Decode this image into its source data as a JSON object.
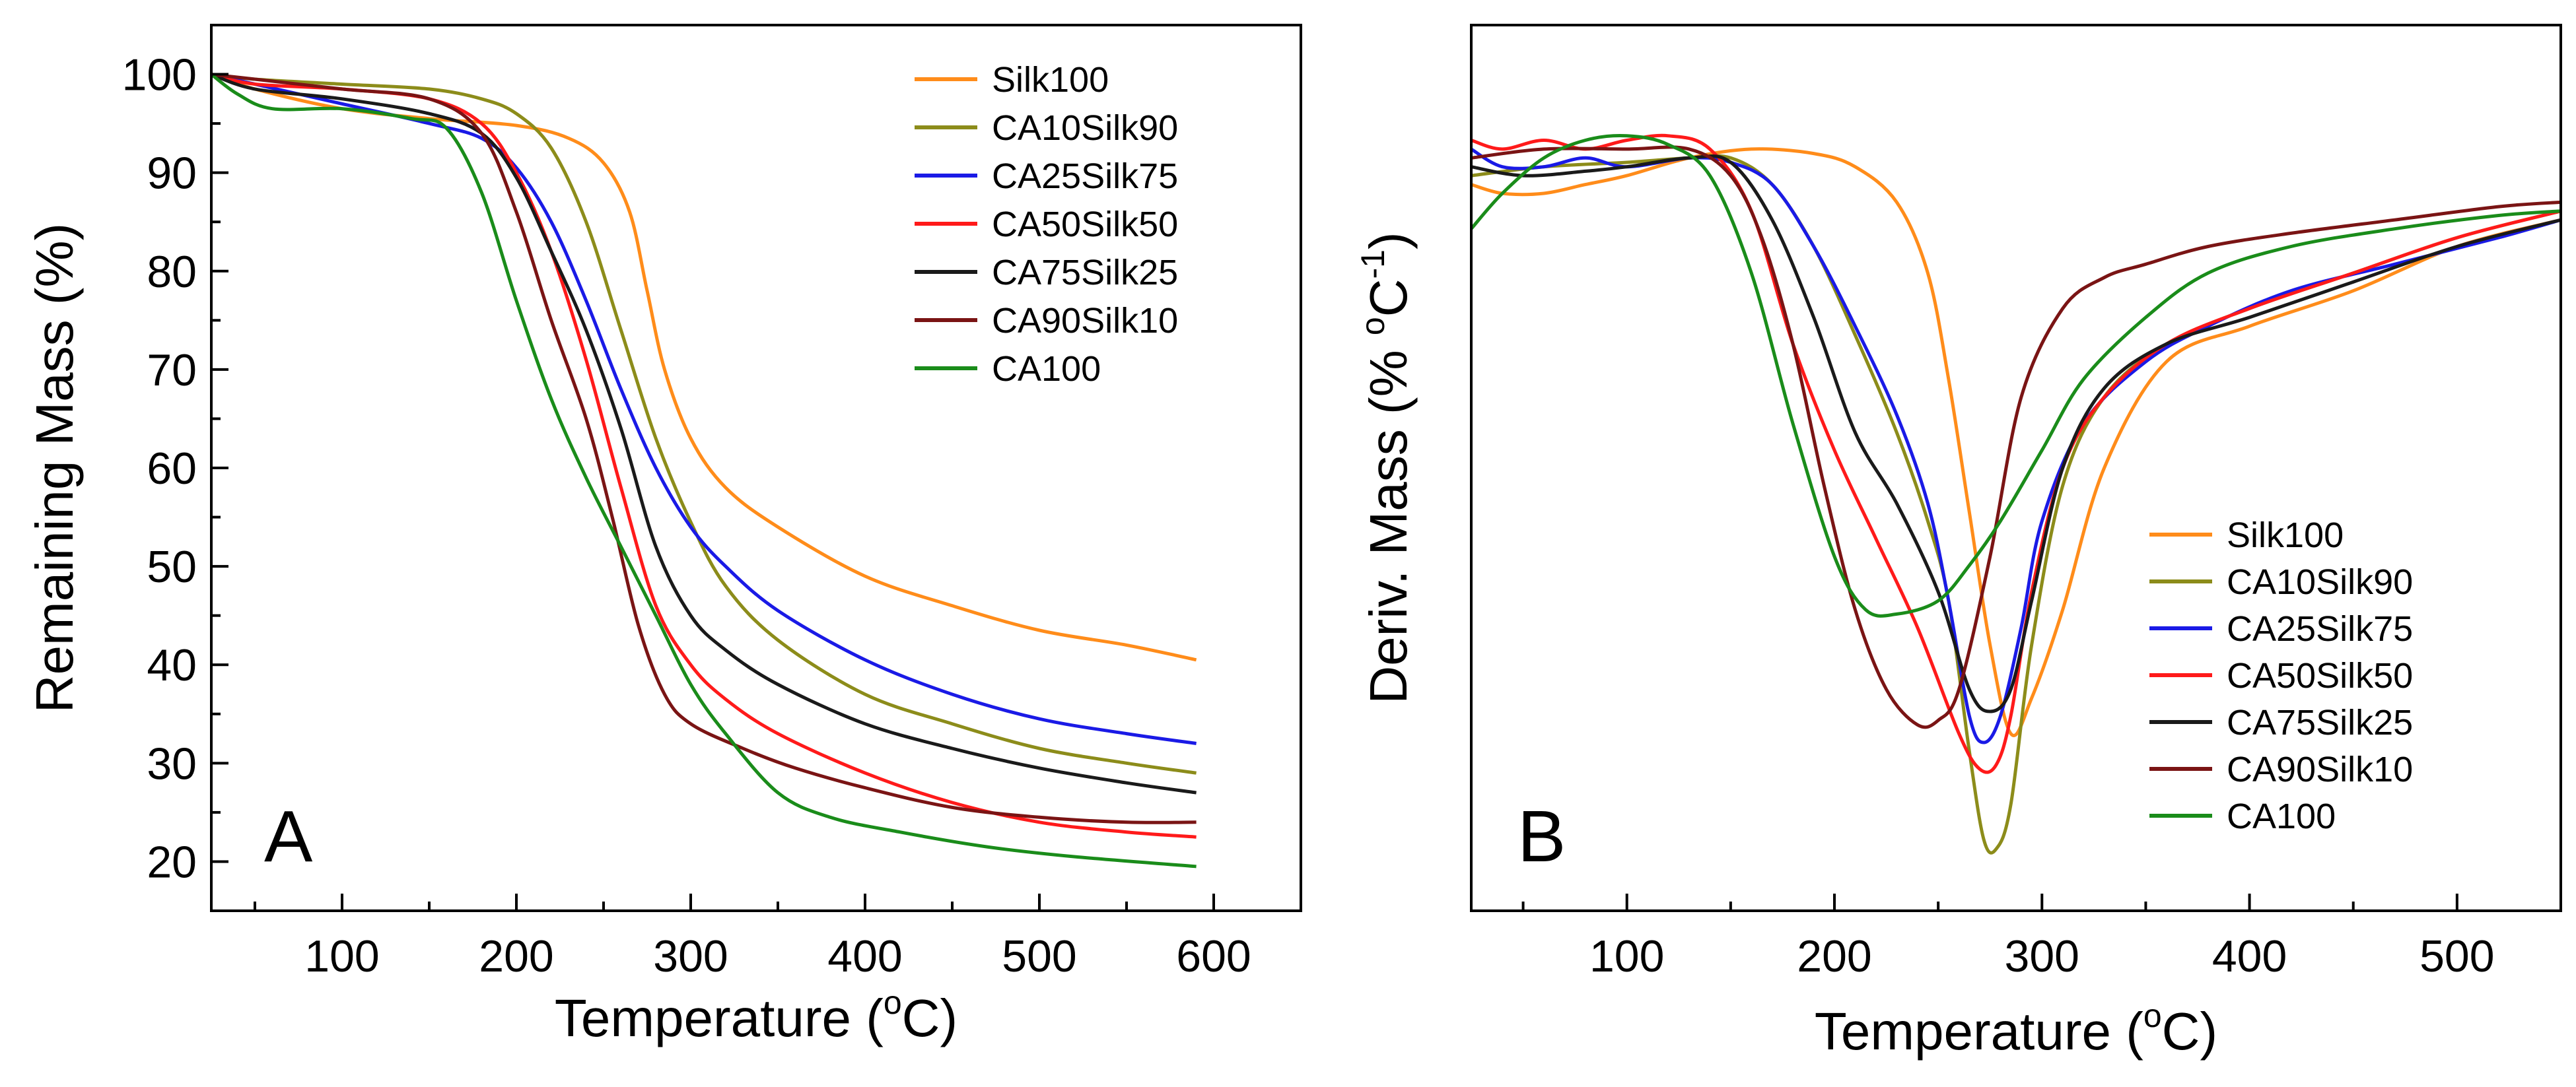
{
  "chart_data": [
    {
      "type": "line",
      "panel_label": "A",
      "title": "",
      "xlabel_main": "Temperature (",
      "xlabel_sup": "o",
      "xlabel_end": "C)",
      "ylabel": "Remaining Mass (%)",
      "xlim": [
        25,
        650
      ],
      "ylim": [
        15,
        105
      ],
      "xticks": [
        100,
        200,
        300,
        400,
        500,
        600
      ],
      "yticks": [
        20,
        30,
        40,
        50,
        60,
        70,
        80,
        90,
        100
      ],
      "legend_position": "top-right",
      "series": [
        {
          "name": "Silk100",
          "color": "#FF8C1A",
          "x": [
            25,
            50,
            100,
            150,
            200,
            230,
            250,
            265,
            275,
            285,
            300,
            320,
            350,
            400,
            450,
            500,
            550,
            590
          ],
          "y": [
            100,
            98.5,
            96.5,
            95.5,
            94.8,
            93.5,
            91,
            86,
            78,
            70,
            63,
            58,
            54,
            49,
            46,
            43.5,
            42,
            40.5
          ]
        },
        {
          "name": "CA10Silk90",
          "color": "#8C8C1A",
          "x": [
            25,
            50,
            100,
            150,
            180,
            200,
            220,
            240,
            260,
            280,
            300,
            320,
            350,
            400,
            450,
            500,
            550,
            590
          ],
          "y": [
            100,
            99.5,
            99,
            98.5,
            97.5,
            96,
            92.5,
            85,
            74,
            63,
            54.5,
            48,
            42.5,
            37,
            34,
            31.5,
            30,
            29
          ]
        },
        {
          "name": "CA25Silk75",
          "color": "#1A1AE6",
          "x": [
            25,
            50,
            100,
            150,
            180,
            200,
            220,
            240,
            260,
            280,
            300,
            320,
            350,
            400,
            450,
            500,
            550,
            590
          ],
          "y": [
            100,
            99,
            97,
            95,
            93.5,
            90.5,
            85,
            77,
            68,
            60,
            54,
            50,
            45.5,
            40.5,
            37,
            34.5,
            33,
            32
          ]
        },
        {
          "name": "CA50Silk50",
          "color": "#FF1A1A",
          "x": [
            25,
            50,
            100,
            150,
            180,
            200,
            220,
            240,
            260,
            280,
            300,
            320,
            350,
            400,
            450,
            500,
            550,
            590
          ],
          "y": [
            100,
            99,
            98.5,
            97.5,
            95,
            90,
            82,
            71,
            58,
            46,
            40,
            36.5,
            33,
            29,
            26,
            24,
            23,
            22.5
          ]
        },
        {
          "name": "CA75Silk25",
          "color": "#1A1A1A",
          "x": [
            25,
            50,
            100,
            150,
            180,
            200,
            220,
            240,
            260,
            280,
            300,
            320,
            350,
            400,
            450,
            500,
            550,
            590
          ],
          "y": [
            100,
            98.5,
            97.5,
            96,
            94,
            89.5,
            82,
            74,
            64,
            52,
            45,
            41.5,
            38,
            34,
            31.5,
            29.5,
            28,
            27
          ]
        },
        {
          "name": "CA90Silk10",
          "color": "#7A1414",
          "x": [
            25,
            50,
            100,
            150,
            180,
            200,
            220,
            240,
            255,
            270,
            285,
            300,
            330,
            360,
            400,
            450,
            500,
            550,
            590
          ],
          "y": [
            100,
            99.5,
            98.5,
            97.5,
            94,
            86,
            75,
            65,
            55,
            44,
            37,
            34,
            31.5,
            29.5,
            27.5,
            25.5,
            24.5,
            24,
            24
          ]
        },
        {
          "name": "CA100",
          "color": "#1A8C1A",
          "x": [
            25,
            40,
            60,
            100,
            140,
            160,
            180,
            200,
            220,
            240,
            260,
            280,
            300,
            320,
            350,
            380,
            420,
            470,
            520,
            590
          ],
          "y": [
            100,
            98,
            96.5,
            96.5,
            95.5,
            94.5,
            88,
            77,
            67,
            59,
            52,
            45,
            38,
            33,
            27,
            24.5,
            23,
            21.5,
            20.5,
            19.5
          ]
        }
      ]
    },
    {
      "type": "line",
      "panel_label": "B",
      "title": "",
      "xlabel_main": "Temperature (",
      "xlabel_sup": "o",
      "xlabel_end": "C)",
      "ylabel_main": "Deriv. Mass (% ",
      "ylabel_sup1": "o",
      "ylabel_mid": "C",
      "ylabel_sup2": "-1",
      "ylabel_end": ")",
      "xlim": [
        25,
        550
      ],
      "ylim": [
        0,
        100
      ],
      "xticks": [
        100,
        200,
        300,
        400,
        500
      ],
      "yticks": [],
      "legend_position": "bottom-right",
      "series": [
        {
          "name": "Silk100",
          "color": "#FF8C1A",
          "x": [
            25,
            40,
            60,
            80,
            100,
            130,
            160,
            190,
            210,
            230,
            245,
            255,
            265,
            275,
            285,
            295,
            310,
            330,
            360,
            400,
            450,
            500,
            550
          ],
          "y": [
            82,
            81,
            81,
            82,
            83,
            85,
            86,
            85.5,
            84,
            80,
            72,
            60,
            45,
            30,
            20,
            24,
            34,
            50,
            62,
            66,
            70,
            75,
            78
          ]
        },
        {
          "name": "CA10Silk90",
          "color": "#8C8C1A",
          "x": [
            25,
            60,
            100,
            130,
            150,
            170,
            190,
            210,
            230,
            245,
            255,
            265,
            272,
            278,
            285,
            295,
            310,
            330,
            360,
            400,
            450,
            500,
            550
          ],
          "y": [
            83,
            84,
            84.5,
            85,
            85,
            82,
            75,
            65,
            54,
            44,
            35,
            18,
            8,
            7,
            12,
            30,
            48,
            58,
            64,
            68,
            72,
            76,
            79
          ]
        },
        {
          "name": "CA25Silk75",
          "color": "#1A1AE6",
          "x": [
            25,
            40,
            60,
            80,
            100,
            130,
            150,
            170,
            190,
            210,
            230,
            245,
            255,
            265,
            272,
            280,
            290,
            300,
            320,
            350,
            380,
            420,
            470,
            520,
            550
          ],
          "y": [
            86,
            84,
            84,
            85,
            84,
            85,
            84.5,
            82,
            75,
            66,
            56,
            46,
            35,
            22,
            19,
            22,
            32,
            44,
            55,
            62,
            66,
            70,
            73,
            76,
            78
          ]
        },
        {
          "name": "CA50Silk50",
          "color": "#FF1A1A",
          "x": [
            25,
            40,
            60,
            80,
            100,
            120,
            140,
            160,
            180,
            200,
            220,
            240,
            260,
            270,
            278,
            285,
            295,
            310,
            330,
            360,
            400,
            450,
            500,
            550
          ],
          "y": [
            87,
            86,
            87,
            86,
            87,
            87.5,
            86,
            79,
            64,
            52,
            42,
            32,
            20,
            16,
            16.5,
            22,
            36,
            50,
            58,
            64,
            68,
            72,
            76,
            79
          ]
        },
        {
          "name": "CA75Silk25",
          "color": "#1A1A1A",
          "x": [
            25,
            50,
            80,
            100,
            130,
            150,
            170,
            190,
            210,
            230,
            250,
            265,
            275,
            285,
            295,
            310,
            330,
            360,
            400,
            450,
            500,
            550
          ],
          "y": [
            84,
            83,
            83.5,
            84,
            85,
            84.5,
            78,
            67,
            54,
            46,
            36,
            25,
            22.5,
            25,
            35,
            50,
            59,
            64,
            67,
            71,
            75,
            78
          ]
        },
        {
          "name": "CA90Silk10",
          "color": "#7A1414",
          "x": [
            25,
            60,
            100,
            130,
            150,
            165,
            180,
            195,
            210,
            225,
            240,
            250,
            260,
            275,
            290,
            310,
            330,
            350,
            380,
            420,
            470,
            520,
            550
          ],
          "y": [
            85,
            86,
            86,
            86,
            83,
            76,
            64,
            48,
            34,
            25,
            21,
            21.5,
            25,
            40,
            58,
            68,
            71.5,
            73,
            75,
            76.5,
            78,
            79.5,
            80
          ]
        },
        {
          "name": "CA100",
          "color": "#1A8C1A",
          "x": [
            25,
            40,
            60,
            80,
            100,
            120,
            140,
            160,
            180,
            200,
            215,
            230,
            250,
            265,
            280,
            300,
            320,
            350,
            380,
            420,
            470,
            520,
            550
          ],
          "y": [
            77,
            81,
            85,
            87,
            87.5,
            86.5,
            83,
            72,
            55,
            40,
            34,
            33.5,
            35,
            39,
            44,
            52,
            60,
            67,
            72,
            75,
            77,
            78.5,
            79
          ]
        }
      ]
    }
  ]
}
